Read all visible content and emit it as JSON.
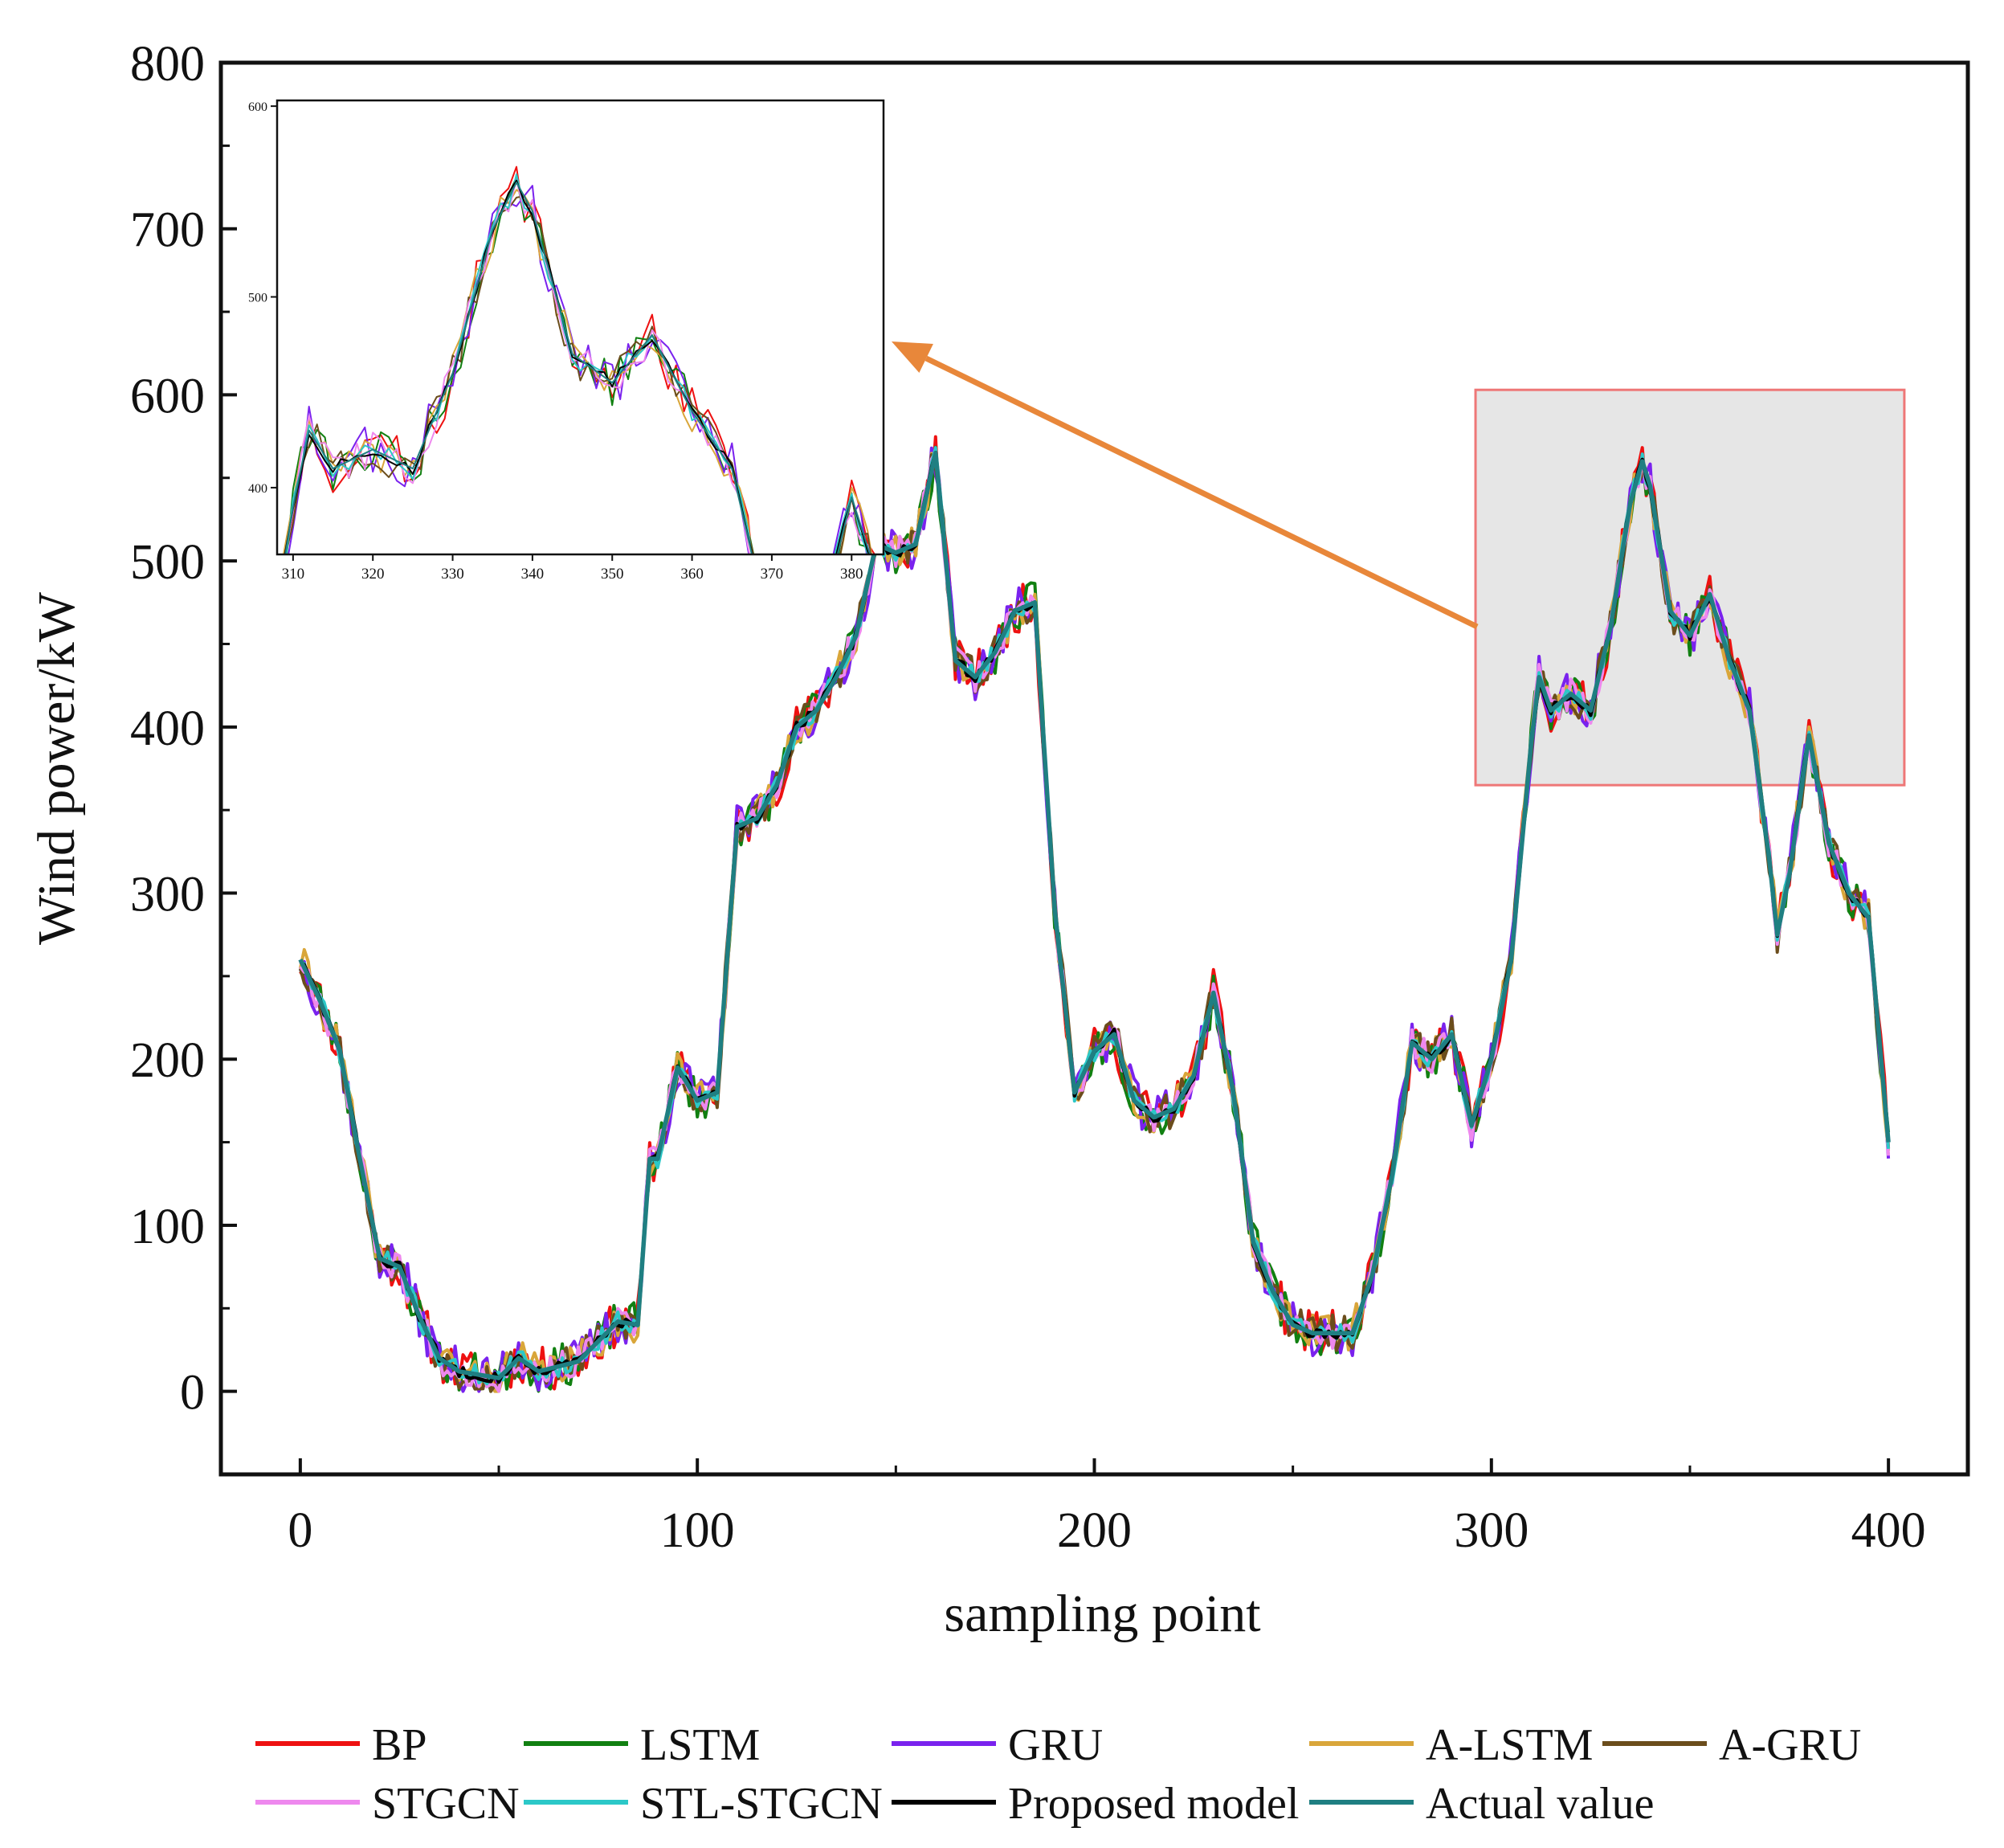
{
  "chart_data": {
    "type": "line",
    "xlabel": "sampling point",
    "ylabel": "Wind power/kW",
    "xlim": [
      -20,
      420
    ],
    "ylim": [
      -50,
      800
    ],
    "xticks": [
      0,
      100,
      200,
      300,
      400
    ],
    "yticks": [
      0,
      100,
      200,
      300,
      400,
      500,
      600,
      700,
      800
    ],
    "grid": false,
    "legend_position": "bottom",
    "highlight_region": {
      "x": [
        296,
        404
      ],
      "y": [
        365,
        603
      ]
    },
    "inset": {
      "xlim": [
        308,
        384
      ],
      "ylim": [
        365,
        603
      ],
      "xticks": [
        310,
        320,
        330,
        340,
        350,
        360,
        370,
        380
      ],
      "yticks": [
        400,
        500,
        600
      ]
    },
    "reference": {
      "x": [
        0,
        5,
        10,
        15,
        20,
        25,
        30,
        35,
        40,
        45,
        50,
        55,
        60,
        65,
        70,
        75,
        80,
        85,
        88,
        90,
        95,
        100,
        105,
        110,
        115,
        120,
        125,
        130,
        135,
        140,
        145,
        150,
        155,
        160,
        165,
        170,
        175,
        180,
        185,
        190,
        195,
        200,
        205,
        210,
        215,
        220,
        225,
        230,
        235,
        240,
        245,
        250,
        255,
        260,
        265,
        270,
        275,
        280,
        285,
        290,
        295,
        300,
        305,
        310,
        312,
        315,
        320,
        325,
        330,
        335,
        338,
        340,
        345,
        350,
        355,
        360,
        365,
        370,
        372,
        375,
        380,
        385,
        390,
        395,
        400
      ],
      "y": [
        260,
        235,
        205,
        140,
        80,
        75,
        45,
        20,
        12,
        10,
        8,
        20,
        12,
        15,
        18,
        30,
        42,
        40,
        140,
        140,
        195,
        175,
        180,
        340,
        345,
        365,
        400,
        410,
        430,
        455,
        510,
        505,
        510,
        565,
        440,
        430,
        445,
        470,
        475,
        290,
        180,
        205,
        215,
        175,
        165,
        170,
        190,
        240,
        180,
        90,
        60,
        40,
        35,
        35,
        35,
        70,
        130,
        210,
        200,
        215,
        160,
        200,
        260,
        390,
        430,
        410,
        420,
        410,
        460,
        535,
        560,
        545,
        470,
        455,
        480,
        440,
        410,
        320,
        275,
        310,
        395,
        330,
        300,
        285,
        150
      ]
    },
    "series": [
      {
        "name": "BP",
        "color": "#ee1111",
        "noise": 14,
        "seed": 11
      },
      {
        "name": "LSTM",
        "color": "#118011",
        "noise": 13,
        "seed": 23
      },
      {
        "name": "GRU",
        "color": "#7a22ee",
        "noise": 14,
        "seed": 37
      },
      {
        "name": "A-LSTM",
        "color": "#d9a63a",
        "noise": 11,
        "seed": 41
      },
      {
        "name": "A-GRU",
        "color": "#6b4d1c",
        "noise": 11,
        "seed": 53
      },
      {
        "name": "STGCN",
        "color": "#ee88ee",
        "noise": 9,
        "seed": 67
      },
      {
        "name": "STL-STGCN",
        "color": "#2cc8c8",
        "noise": 6,
        "seed": 71
      },
      {
        "name": "Proposed model",
        "color": "#000000",
        "noise": 3,
        "seed": 83
      },
      {
        "name": "Actual value",
        "color": "#1f7f82",
        "noise": 0,
        "seed": 97
      }
    ],
    "callout_color": "#e8873a",
    "highlight_fill": "#e6e6e6",
    "highlight_border": "#ee7777"
  }
}
